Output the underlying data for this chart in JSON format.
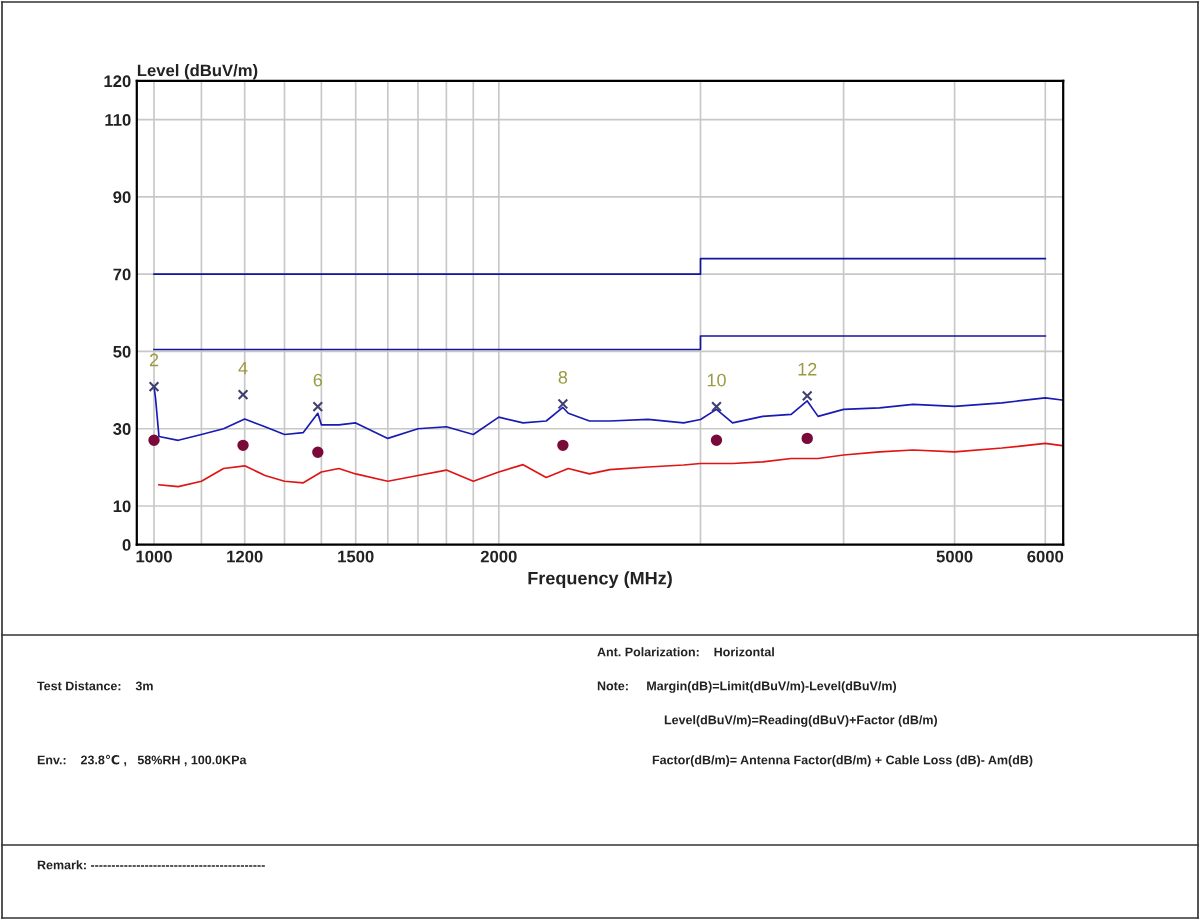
{
  "chart_data": {
    "type": "line",
    "xlabel": "Frequency (MHz)",
    "ylabel": "Level (dBuV/m)",
    "log": "x",
    "grid": true,
    "xlim": [
      966,
      6220
    ],
    "ylim": [
      0,
      120
    ],
    "xticks": [
      1000,
      {
        "value": 1100,
        "label": null
      },
      1200,
      {
        "value": 1300,
        "label": null
      },
      {
        "value": 1400,
        "label": null
      },
      1500,
      {
        "value": 1600,
        "label": null
      },
      {
        "value": 1700,
        "label": null
      },
      {
        "value": 1800,
        "label": null
      },
      {
        "value": 1900,
        "label": null
      },
      2000,
      {
        "value": 3000,
        "label": null
      },
      {
        "value": 4000,
        "label": null
      },
      5000,
      6000
    ],
    "yticks": [
      0,
      10,
      30,
      50,
      70,
      90,
      110,
      120
    ],
    "series": [
      {
        "color": "#1a1ab4",
        "x": [
          1000,
          1003,
          1010,
          1050,
          1100,
          1150,
          1200,
          1250,
          1300,
          1350,
          1390,
          1400,
          1450,
          1500,
          1600,
          1700,
          1800,
          1900,
          2000,
          2100,
          2200,
          2275,
          2300,
          2400,
          2500,
          2700,
          2900,
          3000,
          3098,
          3200,
          3400,
          3600,
          3718,
          3800,
          4000,
          4300,
          4600,
          5000,
          5500,
          6000,
          6220
        ],
        "values": [
          40.9,
          38,
          28,
          27,
          28.5,
          30,
          32.5,
          30.5,
          28.5,
          29,
          34,
          31,
          31,
          31.5,
          27.5,
          30,
          30.5,
          28.5,
          33,
          31.5,
          32,
          35.5,
          34,
          32,
          32,
          32.4,
          31.5,
          32.4,
          35,
          31.5,
          33.2,
          33.7,
          37.2,
          33.2,
          35,
          35.4,
          36.3,
          35.8,
          36.7,
          38,
          37.4
        ]
      },
      {
        "color": "#e01414",
        "x": [
          1010,
          1050,
          1100,
          1150,
          1200,
          1250,
          1300,
          1350,
          1400,
          1450,
          1500,
          1600,
          1700,
          1800,
          1900,
          2000,
          2100,
          2200,
          2300,
          2400,
          2500,
          2700,
          2900,
          3000,
          3200,
          3400,
          3600,
          3800,
          4000,
          4300,
          4600,
          5000,
          5500,
          6000,
          6220
        ],
        "values": [
          15.5,
          15,
          16.4,
          19.7,
          20.4,
          17.9,
          16.4,
          16,
          18.8,
          19.7,
          18.3,
          16.4,
          17.9,
          19.3,
          16.4,
          18.8,
          20.7,
          17.4,
          19.7,
          18.3,
          19.4,
          20.1,
          20.6,
          21,
          21,
          21.4,
          22.3,
          22.3,
          23.2,
          24,
          24.5,
          24,
          25,
          26.2,
          25.6
        ]
      },
      {
        "color": "#1414a0",
        "x": [
          1000,
          3000,
          3000,
          6000
        ],
        "values": [
          70,
          70,
          74,
          74
        ]
      },
      {
        "color": "#1414a0",
        "x": [
          1000,
          3000,
          3000,
          6000
        ],
        "values": [
          50.5,
          50.5,
          54,
          54
        ]
      },
      {
        "type": "scatter",
        "marker": "cross",
        "color": "#404070",
        "x": [
          1000,
          1196,
          1390,
          2275,
          3098,
          3718
        ],
        "values": [
          40.9,
          38.8,
          35.7,
          36.4,
          35.7,
          38.5
        ]
      },
      {
        "type": "scatter",
        "marker": "circle",
        "color": "#7a0a3a",
        "x": [
          1000,
          1196,
          1390,
          2275,
          3098,
          3718
        ],
        "values": [
          27,
          25.7,
          23.9,
          25.7,
          27,
          27.5
        ]
      }
    ],
    "annotations": [
      {
        "text": "2",
        "x": 1000,
        "y": 40.9
      },
      {
        "text": "4",
        "x": 1196,
        "y": 38.8
      },
      {
        "text": "6",
        "x": 1390,
        "y": 35.7
      },
      {
        "text": "8",
        "x": 2275,
        "y": 36.4
      },
      {
        "text": "10",
        "x": 3098,
        "y": 35.7
      },
      {
        "text": "12",
        "x": 3718,
        "y": 38.5
      },
      "Ant. Polarization:    Horizontal",
      "Test Distance:    3m",
      "Note:     Margin(dB)=Limit(dBuV/m)-Level(dBuV/m)",
      "Level(dBuV/m)=Reading(dBuV)+Factor (dB/m)",
      "Env.:    23.8℃ ,   58%RH , 100.0KPa",
      "Factor(dB/m)= Antenna Factor(dB/m) + Cable Loss (dB)- Am(dB)",
      "Remark: ------------------------------------------"
    ]
  }
}
